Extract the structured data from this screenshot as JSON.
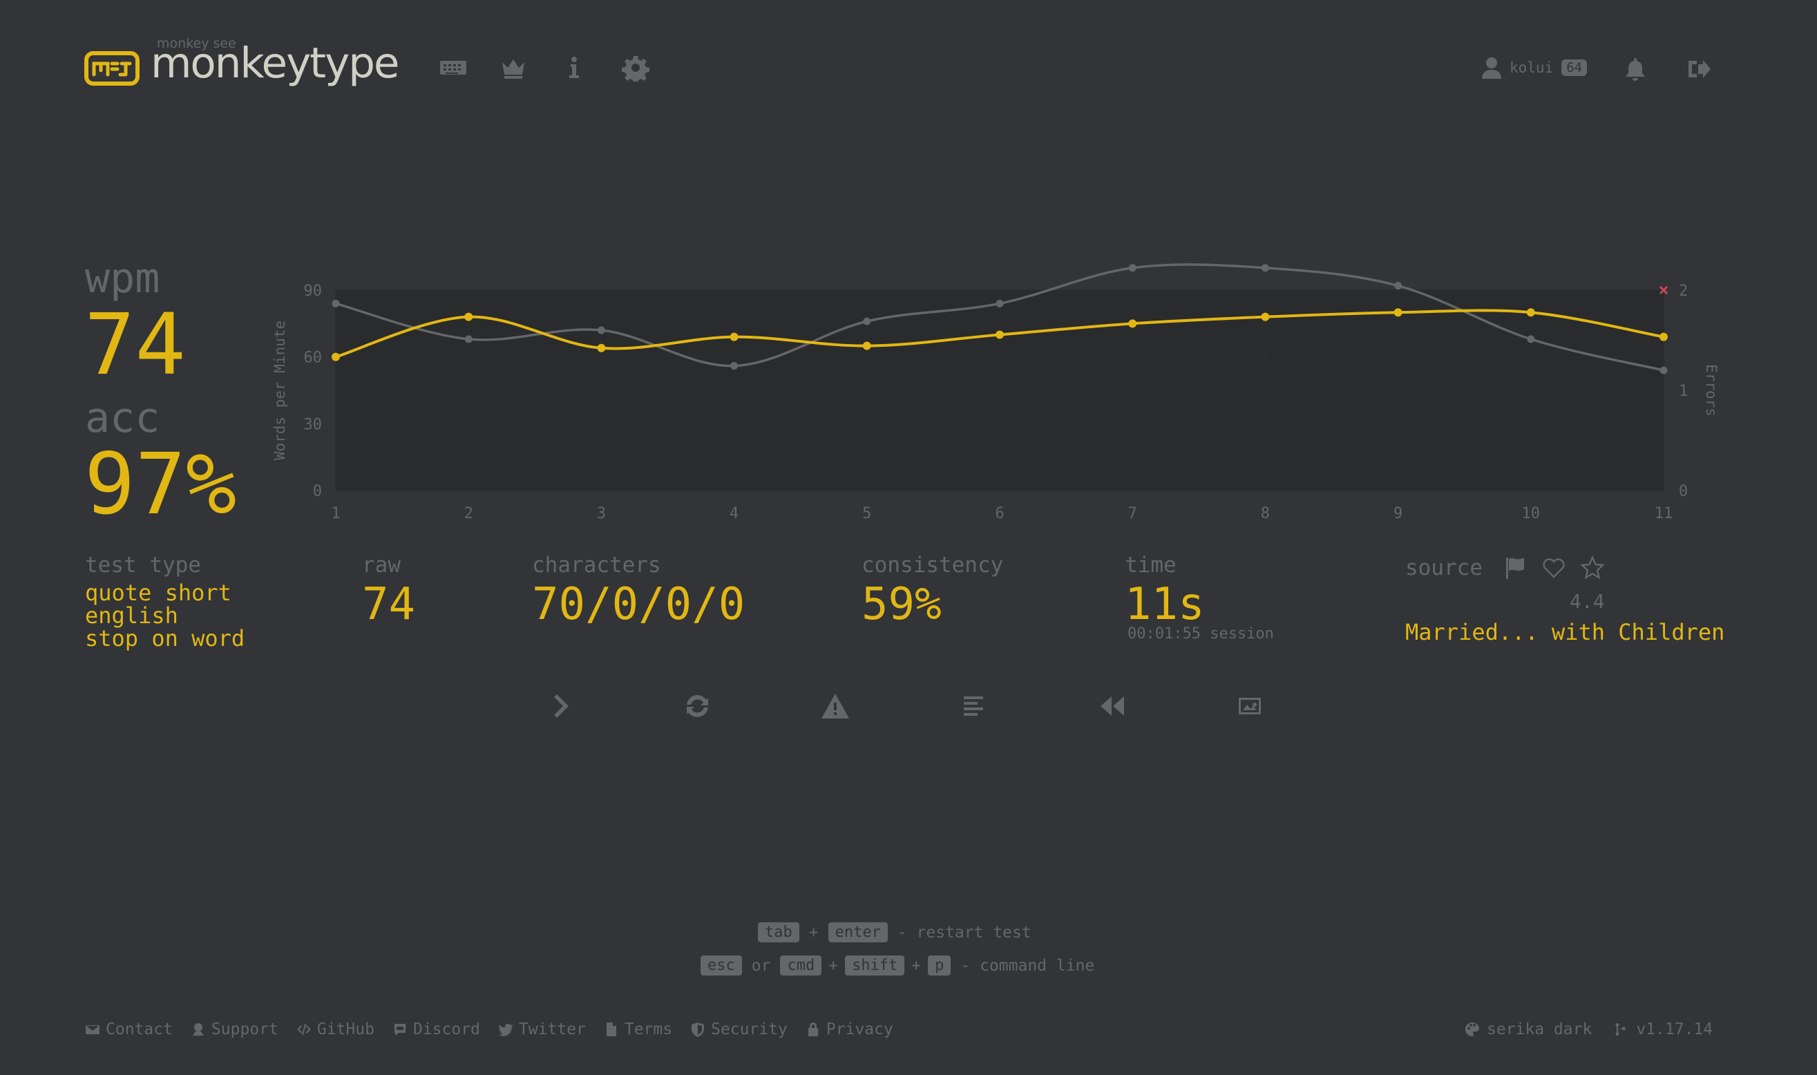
{
  "header": {
    "logo_top": "monkey see",
    "logo_text": "monkeytype",
    "username": "kolui",
    "level": "64"
  },
  "nav_icons": [
    "keyboard-icon",
    "crown-icon",
    "info-icon",
    "gear-icon"
  ],
  "stats": {
    "wpm_label": "wpm",
    "wpm": "74",
    "acc_label": "acc",
    "acc": "97%",
    "test_type_label": "test type",
    "test_type": [
      "quote short",
      "english",
      "stop on word"
    ],
    "raw_label": "raw",
    "raw": "74",
    "characters_label": "characters",
    "characters": "70/0/0/0",
    "consistency_label": "consistency",
    "consistency": "59%",
    "time_label": "time",
    "time": "11s",
    "session": "00:01:55 session",
    "source_label": "source",
    "rating": "4.4",
    "source": "Married... with Children"
  },
  "chart_data": {
    "type": "line",
    "x": [
      1,
      2,
      3,
      4,
      5,
      6,
      7,
      8,
      9,
      10,
      11
    ],
    "ylabel": "Words per Minute",
    "ylabel_right": "Errors",
    "ylim": [
      0,
      90
    ],
    "y_ticks": [
      0,
      30,
      60,
      90
    ],
    "y2lim": [
      0,
      2
    ],
    "y2_ticks": [
      0,
      1,
      2
    ],
    "grid": true,
    "series": [
      {
        "values": [
          60,
          78,
          64,
          69,
          65,
          70,
          75,
          78,
          80,
          80,
          69
        ],
        "color": "#e2b714"
      },
      {
        "values": [
          84,
          68,
          72,
          56,
          76,
          84,
          100,
          100,
          92,
          68,
          54
        ],
        "color": "#646669"
      }
    ],
    "errors": [
      {
        "x": 11,
        "value": 2,
        "color": "#ca4754"
      }
    ]
  },
  "actions": [
    "next-test-icon",
    "restart-icon",
    "warning-icon",
    "words-history-icon",
    "replay-icon",
    "screenshot-icon"
  ],
  "hints": {
    "tab": "tab",
    "enter": "enter",
    "restart": "- restart test",
    "esc": "esc",
    "or": "or",
    "cmd": "cmd",
    "shift": "shift",
    "p": "p",
    "command": "- command line",
    "plus": "+"
  },
  "footer": {
    "links": [
      "Contact",
      "Support",
      "GitHub",
      "Discord",
      "Twitter",
      "Terms",
      "Security",
      "Privacy"
    ],
    "theme": "serika dark",
    "version": "v1.17.14"
  },
  "colors": {
    "background": "#323437",
    "main": "#e2b714",
    "sub": "#646669",
    "text": "#d1d0c5",
    "error": "#ca4754"
  }
}
